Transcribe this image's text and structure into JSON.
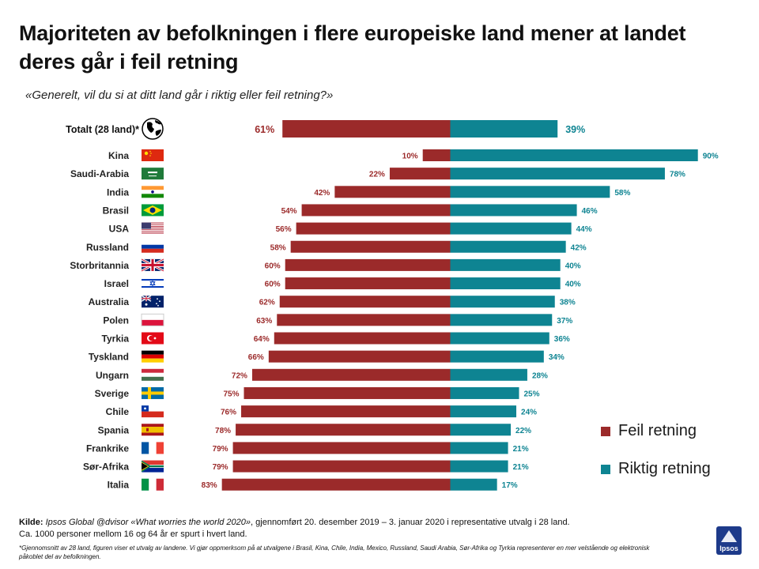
{
  "header": {
    "title": "Majoriteten av befolkningen i flere europeiske land mener at landet deres går i feil retning",
    "subtitle": "«Generelt, vil du si at ditt land går i riktig eller feil retning?»"
  },
  "colors": {
    "wrong": "#9b2a2a",
    "right": "#0e8492"
  },
  "legend": {
    "wrong": "Feil retning",
    "right": "Riktig retning"
  },
  "chart_data": {
    "type": "bar",
    "orientation": "horizontal-diverging",
    "title": "Majoriteten av befolkningen i flere europeiske land mener at landet deres går i feil retning",
    "total": {
      "label": "Totalt (28 land)*",
      "wrong": 61,
      "right": 39,
      "icon": "globe-icon"
    },
    "categories": [
      "Kina",
      "Saudi-Arabia",
      "India",
      "Brasil",
      "USA",
      "Russland",
      "Storbritannia",
      "Israel",
      "Australia",
      "Polen",
      "Tyrkia",
      "Tyskland",
      "Ungarn",
      "Sverige",
      "Chile",
      "Spania",
      "Frankrike",
      "Sør-Afrika",
      "Italia"
    ],
    "series": [
      {
        "name": "Feil retning",
        "values": [
          10,
          22,
          42,
          54,
          56,
          58,
          60,
          60,
          62,
          63,
          64,
          66,
          72,
          75,
          76,
          78,
          79,
          79,
          83
        ]
      },
      {
        "name": "Riktig retning",
        "values": [
          90,
          78,
          58,
          46,
          44,
          42,
          40,
          40,
          38,
          37,
          36,
          34,
          28,
          25,
          24,
          22,
          21,
          21,
          17
        ]
      }
    ],
    "labels_wrong": [
      "10%",
      "22%",
      "42%",
      "54%",
      "56%",
      "58%",
      "60%",
      "60%",
      "62%",
      "63%",
      "64%",
      "66%",
      "72%",
      "75%",
      "76%",
      "78%",
      "79%",
      "79%",
      "83%"
    ],
    "labels_right": [
      "90%",
      "78%",
      "58%",
      "46%",
      "44%",
      "42%",
      "40%",
      "40%",
      "38%",
      "37%",
      "36%",
      "34%",
      "28%",
      "25%",
      "24%",
      "22%",
      "21%",
      "21%",
      "17%"
    ],
    "total_labels": {
      "wrong": "61%",
      "right": "39%"
    },
    "flags": [
      "flag-china-icon",
      "flag-saudi-arabia-icon",
      "flag-india-icon",
      "flag-brazil-icon",
      "flag-usa-icon",
      "flag-russia-icon",
      "flag-uk-icon",
      "flag-israel-icon",
      "flag-australia-icon",
      "flag-poland-icon",
      "flag-turkey-icon",
      "flag-germany-icon",
      "flag-hungary-icon",
      "flag-sweden-icon",
      "flag-chile-icon",
      "flag-spain-icon",
      "flag-france-icon",
      "flag-south-africa-icon",
      "flag-italy-icon"
    ],
    "unit": "%"
  },
  "source": {
    "label": "Kilde:",
    "survey": "Ipsos Global @dvisor «What worries the world 2020»",
    "text": ", gjennomført 20. desember  2019 – 3. januar 2020 i representative utvalg i 28 land.",
    "line2": "Ca. 1000 personer mellom 16 og 64 år er spurt i hvert land."
  },
  "footnote": "*Gjennomsnitt av 28 land, figuren viser et utvalg av landene. Vi gjør oppmerksom på at utvalgene i Brasil, Kina, Chile, India, Mexico, Russland, Saudi Arabia, Sør-Afrika og Tyrkia representerer en mer velstående og elektronisk påkoblet del av befolkningen.",
  "logo": {
    "text": "Ipsos"
  }
}
